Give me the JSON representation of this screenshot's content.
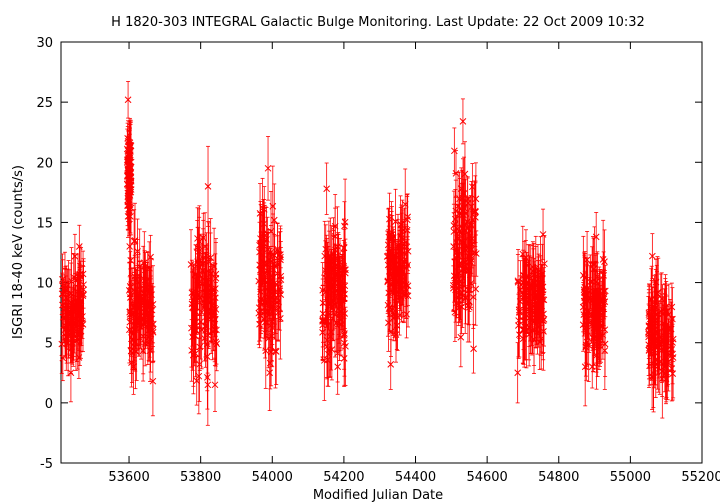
{
  "chart_data": {
    "type": "scatter",
    "title": "H 1820-303   INTEGRAL Galactic Bulge Monitoring.  Last Update: 22 Oct 2009 10:32",
    "xlabel": "Modified Julian Date",
    "ylabel": "ISGRI 18-40 keV (counts/s)",
    "xlim": [
      53410,
      55200
    ],
    "ylim": [
      -5,
      30
    ],
    "xticks": [
      53600,
      53800,
      54000,
      54200,
      54400,
      54600,
      54800,
      55000,
      55200
    ],
    "yticks": [
      -5,
      0,
      5,
      10,
      15,
      20,
      25,
      30
    ],
    "error_bars": true,
    "marker": "x",
    "color": "#ff0000",
    "grid": false,
    "legend": "none",
    "clusters": [
      {
        "x_range": [
          53412,
          53475
        ],
        "y_range": [
          2.5,
          13
        ],
        "y_typical": 7.5,
        "error": 2.2
      },
      {
        "x_range": [
          53595,
          53606
        ],
        "y_range": [
          15.5,
          25.2
        ],
        "y_typical": 19,
        "error": 1.8
      },
      {
        "x_range": [
          53600,
          53668
        ],
        "y_range": [
          1.8,
          13.5
        ],
        "y_typical": 8,
        "error": 2.5
      },
      {
        "x_range": [
          53772,
          53845
        ],
        "y_range": [
          1.5,
          18
        ],
        "y_typical": 8.5,
        "error": 2.6
      },
      {
        "x_range": [
          53962,
          54025
        ],
        "y_range": [
          2.5,
          19.5
        ],
        "y_typical": 10.5,
        "error": 2.6
      },
      {
        "x_range": [
          54140,
          54205
        ],
        "y_range": [
          3,
          17.8
        ],
        "y_typical": 9,
        "error": 2.8
      },
      {
        "x_range": [
          54320,
          54380
        ],
        "y_range": [
          3.2,
          16.5
        ],
        "y_typical": 11,
        "error": 2.3
      },
      {
        "x_range": [
          54505,
          54570
        ],
        "y_range": [
          4.5,
          23.4
        ],
        "y_typical": 13,
        "error": 2.4
      },
      {
        "x_range": [
          54685,
          54760
        ],
        "y_range": [
          2.5,
          14
        ],
        "y_typical": 8,
        "error": 2.5
      },
      {
        "x_range": [
          54868,
          54930
        ],
        "y_range": [
          3,
          13.8
        ],
        "y_typical": 7.5,
        "error": 2.5
      },
      {
        "x_range": [
          55050,
          55120
        ],
        "y_range": [
          2,
          12.2
        ],
        "y_typical": 5.5,
        "error": 2.6
      }
    ]
  }
}
